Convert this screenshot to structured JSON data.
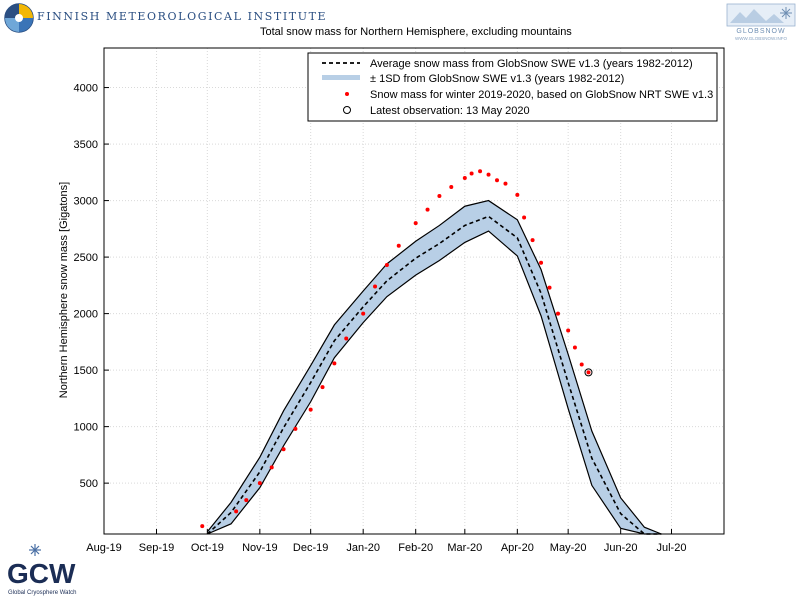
{
  "header": {
    "institute_name": "FINNISH METEOROLOGICAL INSTITUTE",
    "title": "Total snow mass for Northern Hemisphere, excluding mountains",
    "globsnow_logo_text": "GLOBSNOW",
    "globsnow_url": "WWW.GLOBSNOW.INFO"
  },
  "footer_logo": {
    "letters": "GCW",
    "caption": "Global Cryosphere Watch"
  },
  "colors": {
    "band_fill": "#b8cfe6",
    "band_edge": "#000000",
    "mean_line": "#000000",
    "current_points": "#ff0000",
    "grid": "#d9d9d9",
    "fmi_blue": "#2b4f82"
  },
  "chart_data": {
    "type": "line",
    "title": "Total snow mass for Northern Hemisphere, excluding mountains",
    "xlabel": "",
    "ylabel": "Northern Hemisphere snow mass [Gigatons]",
    "x_tick_labels": [
      "Aug-19",
      "Sep-19",
      "Oct-19",
      "Nov-19",
      "Dec-19",
      "Jan-20",
      "Feb-20",
      "Mar-20",
      "Apr-20",
      "May-20",
      "Jun-20",
      "Jul-20"
    ],
    "xlim": [
      "2019-08-01",
      "2020-08-01"
    ],
    "ylim": [
      50,
      4350
    ],
    "y_ticks": [
      500,
      1000,
      1500,
      2000,
      2500,
      3000,
      3500,
      4000
    ],
    "grid": true,
    "legend_position": "top-right",
    "legend": [
      {
        "type": "dashed-line",
        "label": "Average snow mass from GlobSnow SWE v1.3 (years 1982-2012)"
      },
      {
        "type": "band",
        "label": "± 1SD from GlobSnow SWE v1.3 (years 1982-2012)"
      },
      {
        "type": "red-dots",
        "label": "Snow mass for winter 2019-2020, based on GlobSnow NRT SWE v1.3"
      },
      {
        "type": "open-circle",
        "label": "Latest observation: 13 May 2020"
      }
    ],
    "series": [
      {
        "name": "Average snow mass from GlobSnow SWE v1.3 (years 1982-2012)",
        "x": [
          "2019-10-01",
          "2019-10-15",
          "2019-11-01",
          "2019-11-15",
          "2019-12-01",
          "2019-12-15",
          "2020-01-01",
          "2020-01-15",
          "2020-02-01",
          "2020-02-15",
          "2020-03-01",
          "2020-03-15",
          "2020-04-01",
          "2020-04-15",
          "2020-05-01",
          "2020-05-15",
          "2020-06-01",
          "2020-06-15",
          "2020-06-25"
        ],
        "y": [
          30,
          240,
          600,
          990,
          1390,
          1760,
          2060,
          2290,
          2490,
          2620,
          2780,
          2860,
          2670,
          2180,
          1390,
          720,
          230,
          50,
          10
        ]
      },
      {
        "name": "+1SD",
        "x": [
          "2019-10-01",
          "2019-10-15",
          "2019-11-01",
          "2019-11-15",
          "2019-12-01",
          "2019-12-15",
          "2020-01-01",
          "2020-01-15",
          "2020-02-01",
          "2020-02-15",
          "2020-03-01",
          "2020-03-15",
          "2020-04-01",
          "2020-04-15",
          "2020-05-01",
          "2020-05-15",
          "2020-06-01",
          "2020-06-15",
          "2020-06-25"
        ],
        "y": [
          70,
          330,
          730,
          1140,
          1540,
          1900,
          2200,
          2440,
          2640,
          2780,
          2950,
          3000,
          2830,
          2390,
          1640,
          960,
          370,
          110,
          40
        ]
      },
      {
        "name": "-1SD",
        "x": [
          "2019-10-01",
          "2019-10-15",
          "2019-11-01",
          "2019-11-15",
          "2019-12-01",
          "2019-12-15",
          "2020-01-01",
          "2020-01-15",
          "2020-02-01",
          "2020-02-15",
          "2020-03-01",
          "2020-03-15",
          "2020-04-01",
          "2020-04-15",
          "2020-05-01",
          "2020-05-15",
          "2020-06-01",
          "2020-06-15",
          "2020-06-25"
        ],
        "y": [
          0,
          140,
          460,
          830,
          1220,
          1610,
          1920,
          2150,
          2340,
          2470,
          2630,
          2730,
          2510,
          1980,
          1160,
          480,
          100,
          10,
          0
        ]
      },
      {
        "name": "Snow mass for winter 2019-2020, based on GlobSnow NRT SWE v1.3",
        "x": [
          "2019-09-20",
          "2019-09-28",
          "2019-10-18",
          "2019-10-24",
          "2019-11-01",
          "2019-11-08",
          "2019-11-15",
          "2019-11-22",
          "2019-12-01",
          "2019-12-08",
          "2019-12-15",
          "2019-12-22",
          "2020-01-01",
          "2020-01-08",
          "2020-01-15",
          "2020-01-22",
          "2020-02-01",
          "2020-02-08",
          "2020-02-15",
          "2020-02-22",
          "2020-03-01",
          "2020-03-05",
          "2020-03-10",
          "2020-03-15",
          "2020-03-20",
          "2020-03-25",
          "2020-04-01",
          "2020-04-05",
          "2020-04-10",
          "2020-04-15",
          "2020-04-20",
          "2020-04-25",
          "2020-05-01",
          "2020-05-05",
          "2020-05-09",
          "2020-05-13"
        ],
        "y": [
          10,
          120,
          250,
          350,
          500,
          640,
          800,
          980,
          1150,
          1350,
          1560,
          1780,
          2000,
          2240,
          2430,
          2600,
          2800,
          2920,
          3040,
          3120,
          3200,
          3240,
          3260,
          3230,
          3180,
          3150,
          3050,
          2850,
          2650,
          2450,
          2230,
          2000,
          1850,
          1700,
          1550,
          1480
        ]
      }
    ],
    "latest_observation": {
      "x": "2020-05-13",
      "y": 1480
    }
  }
}
